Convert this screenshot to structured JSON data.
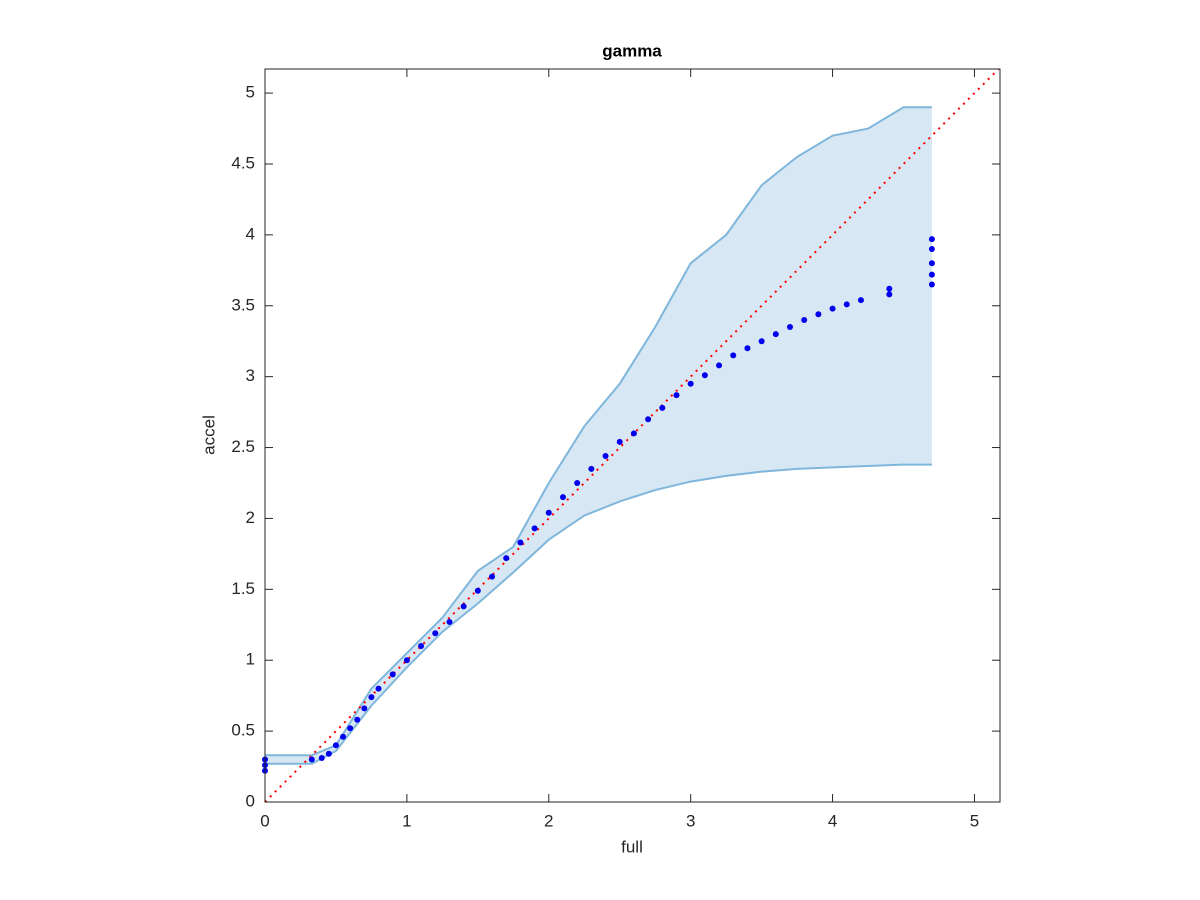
{
  "chart_data": {
    "type": "scatter",
    "title": "gamma",
    "x_label": "full",
    "y_label": "accel",
    "x": [
      0,
      0,
      0,
      0.33,
      0.4,
      0.45,
      0.5,
      0.55,
      0.6,
      0.65,
      0.7,
      0.75,
      0.8,
      0.9,
      1.0,
      1.1,
      1.2,
      1.3,
      1.4,
      1.5,
      1.6,
      1.7,
      1.8,
      1.9,
      2.0,
      2.1,
      2.2,
      2.3,
      2.4,
      2.5,
      2.6,
      2.7,
      2.8,
      2.9,
      3.0,
      3.1,
      3.2,
      3.3,
      3.4,
      3.5,
      3.6,
      3.7,
      3.8,
      3.9,
      4.0,
      4.1,
      4.2,
      4.4,
      4.4,
      4.7,
      4.7,
      4.7,
      4.7,
      4.7
    ],
    "values": [
      0.22,
      0.26,
      0.3,
      0.3,
      0.31,
      0.34,
      0.4,
      0.46,
      0.52,
      0.58,
      0.66,
      0.74,
      0.8,
      0.9,
      1.0,
      1.1,
      1.19,
      1.27,
      1.38,
      1.49,
      1.59,
      1.72,
      1.83,
      1.93,
      2.04,
      2.15,
      2.25,
      2.35,
      2.44,
      2.54,
      2.6,
      2.7,
      2.78,
      2.87,
      2.95,
      3.01,
      3.08,
      3.15,
      3.2,
      3.25,
      3.3,
      3.35,
      3.4,
      3.44,
      3.48,
      3.51,
      3.54,
      3.58,
      3.62,
      3.65,
      3.72,
      3.8,
      3.9,
      3.97
    ],
    "color": "#0000ee",
    "band": {
      "x": [
        0,
        0.33,
        0.5,
        0.75,
        1.0,
        1.25,
        1.5,
        1.75,
        2.0,
        2.25,
        2.5,
        2.75,
        3.0,
        3.25,
        3.5,
        3.75,
        4.0,
        4.25,
        4.5,
        4.7
      ],
      "upper": [
        0.33,
        0.33,
        0.4,
        0.8,
        1.05,
        1.3,
        1.63,
        1.8,
        2.25,
        2.65,
        2.95,
        3.35,
        3.8,
        4.0,
        4.35,
        4.55,
        4.7,
        4.75,
        4.9,
        4.9
      ],
      "lower": [
        0.27,
        0.27,
        0.36,
        0.68,
        0.95,
        1.2,
        1.4,
        1.62,
        1.85,
        2.02,
        2.12,
        2.2,
        2.26,
        2.3,
        2.33,
        2.35,
        2.36,
        2.37,
        2.38,
        2.38
      ],
      "color": "#7fb6db",
      "fill": "#d7e7f4"
    },
    "reference_line": true,
    "reference_line_color": "#ff0000",
    "xlim": [
      0,
      5.18
    ],
    "ylim": [
      0,
      5.17
    ],
    "xticks": [
      0,
      1,
      2,
      3,
      4,
      5
    ],
    "yticks": [
      0,
      0.5,
      1,
      1.5,
      2,
      2.5,
      3,
      3.5,
      4,
      4.5,
      5
    ],
    "grid": false
  }
}
